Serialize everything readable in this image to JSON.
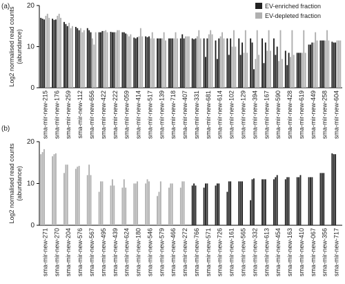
{
  "chart_data": [
    {
      "type": "bar",
      "label": "(a)",
      "ylabel": [
        "Log2 normalised read counts",
        "(abundance)"
      ],
      "categories": [
        "sma-mir-new-215",
        "sma-mir-new-176",
        "sma-mir-new-259",
        "sma-mir-new-112",
        "sma-mir-new-656",
        "sma-mir-new-422",
        "sma-mir-new-222",
        "sma-mir-new-059",
        "sma-mir-new-414",
        "sma-mir-new-517",
        "sma-mir-new-139",
        "sma-mir-new-718",
        "sma-mir-new-407",
        "sma-mir-new-331",
        "sma-mir-new-681",
        "sma-mir-new-614",
        "sma-mir-new-102",
        "sma-mir-new-129",
        "sma-mir-new-394",
        "sma-mir-new-167",
        "sma-mir-new-590",
        "sma-mir-new-428",
        "sma-mir-new-619",
        "sma-mir-new-449",
        "sma-mir-new-258",
        "sma-mir-new-604"
      ],
      "series": [
        {
          "name": "EV-enriched fraction",
          "color": "#222222",
          "values": [
            [
              17,
              16.8,
              16.6
            ],
            [
              16.8,
              16.5,
              16.6
            ],
            [
              16,
              15.5,
              15
            ],
            [
              14.8,
              14.5,
              14
            ],
            [
              14.5,
              14,
              13.5
            ],
            [
              13.5,
              13.5,
              13.8
            ],
            [
              13.6,
              13.5,
              13.5
            ],
            [
              13.5,
              13.5,
              13.2
            ],
            [
              12.2,
              12,
              12.3
            ],
            [
              12.5,
              12.3,
              12.5
            ],
            [
              12,
              12,
              12
            ],
            [
              12,
              12,
              12
            ],
            [
              12,
              13,
              12
            ],
            [
              12,
              11.8,
              12
            ],
            [
              12,
              7.5,
              12
            ],
            [
              11.5,
              7,
              12
            ],
            [
              12,
              8,
              12
            ],
            [
              12,
              8,
              11
            ],
            [
              12,
              11,
              4.5
            ],
            [
              12,
              6,
              11
            ],
            [
              12,
              8,
              10
            ],
            [
              9,
              5.5,
              8.5
            ],
            [
              8.5,
              8.5,
              8.5
            ],
            [
              10.5,
              10.5,
              11
            ],
            [
              11.5,
              11.5,
              11.5
            ],
            [
              11.2,
              11,
              11
            ]
          ]
        },
        {
          "name": "EV-depleted fraction",
          "color": "#b0b0b0",
          "values": [
            [
              17.5,
              18,
              17
            ],
            [
              17.5,
              18,
              17
            ],
            [
              15.8,
              14.5,
              15
            ],
            [
              14.5,
              13.5,
              14
            ],
            [
              12,
              10.5,
              13.5
            ],
            [
              13.8,
              14,
              13.5
            ],
            [
              13.5,
              14,
              14
            ],
            [
              13,
              12.5,
              13
            ],
            [
              12.5,
              14.5,
              12.5
            ],
            [
              12,
              13.5,
              12
            ],
            [
              12,
              13.5,
              11.5
            ],
            [
              12,
              13.5,
              12
            ],
            [
              12.5,
              12.5,
              12.5
            ],
            [
              12.5,
              14,
              12
            ],
            [
              13,
              14,
              13
            ],
            [
              12.5,
              13.5,
              12
            ],
            [
              10,
              14,
              10
            ],
            [
              8.5,
              14,
              8.5
            ],
            [
              7,
              14,
              8
            ],
            [
              9,
              14,
              9
            ],
            [
              6.5,
              14,
              7
            ],
            [
              7.5,
              14,
              8
            ],
            [
              8.5,
              14,
              8.5
            ],
            [
              11,
              13.5,
              11.5
            ],
            [
              11.5,
              14,
              11.5
            ],
            [
              11.5,
              11.5,
              11.5
            ]
          ]
        }
      ],
      "ylim": [
        0,
        20
      ],
      "yticks": [
        0,
        10,
        20
      ],
      "legend": "top-right"
    },
    {
      "type": "bar",
      "label": "(b)",
      "ylabel": [
        "Log2 normalised read counts",
        "(abundance)"
      ],
      "categories": [
        "sma-mir-new-271",
        "sma-mir-new-270",
        "sma-mir-new-204",
        "sma-mir-new-576",
        "sma-mir-new-567",
        "sma-mir-new-495",
        "sma-mir-new-439",
        "sma-mir-new-624",
        "sma-mir-new-180",
        "sma-mir-new-546",
        "sma-mir-new-579",
        "sma-mir-new-466",
        "sma-mir-new-272",
        "sma-mir-new-766",
        "sma-mir-new-571",
        "sma-mir-new-726",
        "sma-mir-new-161",
        "sma-mir-new-565",
        "sma-mir-new-332",
        "sma-mir-new-613",
        "sma-mir-new-454",
        "sma-mir-new-163",
        "sma-mir-new-410",
        "sma-mir-new-067",
        "sma-mir-new-356",
        "sma-mir-new-717"
      ],
      "series": [
        {
          "color": "#b0b0b0",
          "values": [
            [
              17,
              17.5,
              18.2
            ],
            [
              16.5,
              17,
              17.2
            ],
            [
              12.5,
              14.5,
              14.5
            ],
            [
              13.5,
              14,
              14.2
            ],
            [
              12,
              14.5,
              12
            ],
            [
              8,
              10.5,
              10.5
            ],
            [
              9.5,
              11,
              9.5
            ],
            [
              9,
              11,
              9
            ],
            [
              10,
              10,
              10.5
            ],
            [
              10,
              11,
              10.5
            ],
            [
              7,
              8,
              10.5
            ],
            [
              9,
              10,
              10
            ],
            [
              9,
              10.5,
              10.5
            ],
            null,
            null,
            null,
            null,
            null,
            null,
            null,
            null,
            null,
            null,
            null,
            null,
            null
          ]
        },
        {
          "color": "#222222",
          "values": [
            null,
            null,
            null,
            null,
            null,
            null,
            null,
            null,
            null,
            null,
            null,
            null,
            null,
            [
              9.5,
              10,
              9.5
            ],
            [
              9,
              10,
              10
            ],
            [
              9.5,
              10,
              10
            ],
            [
              8,
              10.5,
              10.5
            ],
            [
              10.5,
              10.5,
              10.5
            ],
            [
              6,
              11,
              11.2
            ],
            [
              11,
              11,
              11
            ],
            [
              11,
              11.5,
              12
            ],
            [
              11,
              11.5,
              11.5
            ],
            [
              11.5,
              11.5,
              12
            ],
            [
              11.5,
              11.5,
              11.5
            ],
            [
              12.5,
              12.5,
              12.5
            ],
            [
              17.2,
              17,
              17
            ]
          ]
        }
      ],
      "ylim": [
        0,
        20
      ],
      "yticks": [
        0,
        10,
        20
      ]
    }
  ]
}
